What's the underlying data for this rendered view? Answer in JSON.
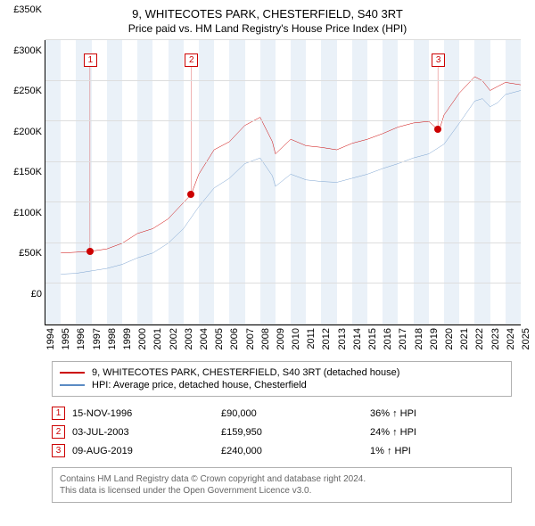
{
  "title": "9, WHITECOTES PARK, CHESTERFIELD, S40 3RT",
  "subtitle": "Price paid vs. HM Land Registry's House Price Index (HPI)",
  "chart": {
    "type": "line",
    "ylim": [
      0,
      350000
    ],
    "ytick_step": 50000,
    "yticks": [
      "£0",
      "£50K",
      "£100K",
      "£150K",
      "£200K",
      "£250K",
      "£300K",
      "£350K"
    ],
    "xrange": [
      1994,
      2025
    ],
    "xticks": [
      1994,
      1995,
      1996,
      1997,
      1998,
      1999,
      2000,
      2001,
      2002,
      2003,
      2004,
      2005,
      2006,
      2007,
      2008,
      2009,
      2010,
      2011,
      2012,
      2013,
      2014,
      2015,
      2016,
      2017,
      2018,
      2019,
      2020,
      2021,
      2022,
      2023,
      2024,
      2025
    ],
    "band_color": "#eaf1f8",
    "grid_color": "#dddddd",
    "background_color": "#ffffff",
    "series": [
      {
        "name": "property",
        "label": "9, WHITECOTES PARK, CHESTERFIELD, S40 3RT (detached house)",
        "color": "#cc0000",
        "width": 1.5,
        "points": [
          [
            1995,
            88000
          ],
          [
            1996,
            89000
          ],
          [
            1996.9,
            90000
          ],
          [
            1998,
            93000
          ],
          [
            1999,
            100000
          ],
          [
            2000,
            112000
          ],
          [
            2001,
            118000
          ],
          [
            2002,
            130000
          ],
          [
            2003,
            150000
          ],
          [
            2003.5,
            160000
          ],
          [
            2004,
            185000
          ],
          [
            2005,
            215000
          ],
          [
            2006,
            225000
          ],
          [
            2007,
            245000
          ],
          [
            2008,
            255000
          ],
          [
            2008.8,
            225000
          ],
          [
            2009,
            210000
          ],
          [
            2010,
            228000
          ],
          [
            2011,
            220000
          ],
          [
            2012,
            218000
          ],
          [
            2013,
            215000
          ],
          [
            2014,
            223000
          ],
          [
            2015,
            228000
          ],
          [
            2016,
            235000
          ],
          [
            2017,
            243000
          ],
          [
            2018,
            248000
          ],
          [
            2019,
            250000
          ],
          [
            2019.6,
            240000
          ],
          [
            2019.7,
            240000
          ],
          [
            2020,
            258000
          ],
          [
            2021,
            285000
          ],
          [
            2022,
            305000
          ],
          [
            2022.5,
            300000
          ],
          [
            2023,
            288000
          ],
          [
            2023.5,
            293000
          ],
          [
            2024,
            298000
          ],
          [
            2025,
            295000
          ]
        ]
      },
      {
        "name": "hpi",
        "label": "HPI: Average price, detached house, Chesterfield",
        "color": "#5b8bc4",
        "width": 1.2,
        "points": [
          [
            1995,
            62000
          ],
          [
            1996,
            63000
          ],
          [
            1997,
            66000
          ],
          [
            1998,
            69000
          ],
          [
            1999,
            74000
          ],
          [
            2000,
            82000
          ],
          [
            2001,
            88000
          ],
          [
            2002,
            100000
          ],
          [
            2003,
            118000
          ],
          [
            2004,
            145000
          ],
          [
            2005,
            168000
          ],
          [
            2006,
            180000
          ],
          [
            2007,
            198000
          ],
          [
            2008,
            205000
          ],
          [
            2008.8,
            183000
          ],
          [
            2009,
            170000
          ],
          [
            2010,
            185000
          ],
          [
            2011,
            178000
          ],
          [
            2012,
            176000
          ],
          [
            2013,
            175000
          ],
          [
            2014,
            180000
          ],
          [
            2015,
            185000
          ],
          [
            2016,
            192000
          ],
          [
            2017,
            198000
          ],
          [
            2018,
            205000
          ],
          [
            2019,
            210000
          ],
          [
            2020,
            222000
          ],
          [
            2021,
            248000
          ],
          [
            2022,
            275000
          ],
          [
            2022.5,
            278000
          ],
          [
            2023,
            268000
          ],
          [
            2023.5,
            273000
          ],
          [
            2024,
            283000
          ],
          [
            2025,
            288000
          ]
        ]
      }
    ],
    "sale_markers": [
      {
        "n": "1",
        "year": 1996.9,
        "price": 90000,
        "box_top_pct": 9
      },
      {
        "n": "2",
        "year": 2003.5,
        "price": 159950,
        "box_top_pct": 9
      },
      {
        "n": "3",
        "year": 2019.6,
        "price": 240000,
        "box_top_pct": 9
      }
    ]
  },
  "legend": {
    "rows": [
      {
        "color": "#cc0000",
        "label": "9, WHITECOTES PARK, CHESTERFIELD, S40 3RT (detached house)"
      },
      {
        "color": "#5b8bc4",
        "label": "HPI: Average price, detached house, Chesterfield"
      }
    ]
  },
  "sales": [
    {
      "n": "1",
      "date": "15-NOV-1996",
      "price": "£90,000",
      "pct": "36% ↑ HPI"
    },
    {
      "n": "2",
      "date": "03-JUL-2003",
      "price": "£159,950",
      "pct": "24% ↑ HPI"
    },
    {
      "n": "3",
      "date": "09-AUG-2019",
      "price": "£240,000",
      "pct": "1% ↑ HPI"
    }
  ],
  "footer": {
    "line1": "Contains HM Land Registry data © Crown copyright and database right 2024.",
    "line2": "This data is licensed under the Open Government Licence v3.0."
  }
}
